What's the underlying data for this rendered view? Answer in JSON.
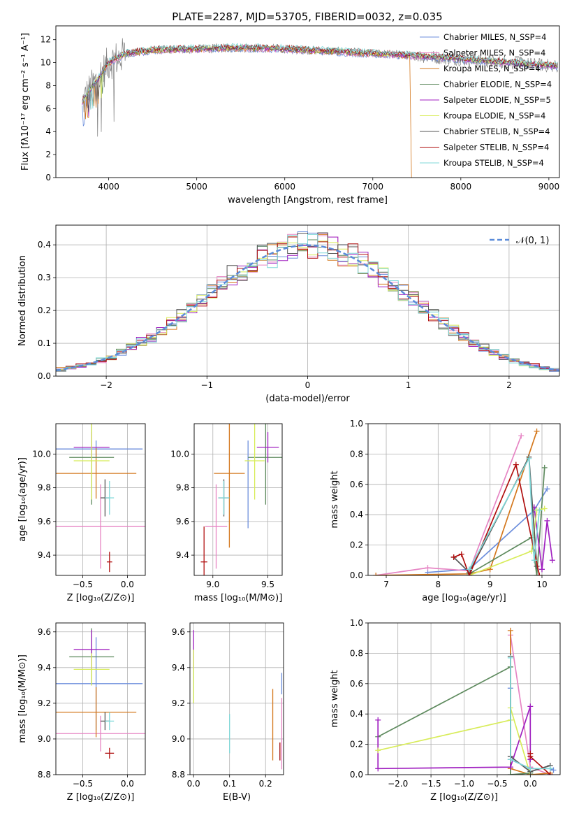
{
  "figure": {
    "title": "PLATE=2287, MJD=53705, FIBERID=0032, z=0.035"
  },
  "chart_data": [
    {
      "id": "spectrum",
      "type": "line",
      "xlabel": "wavelength [Angstrom, rest frame]",
      "ylabel": "Flux [fλ10⁻¹⁷ erg cm⁻² s⁻¹ A⁻¹]",
      "xlim": [
        3400,
        9120
      ],
      "ylim": [
        0,
        13.2
      ],
      "xticks": [
        4000,
        5000,
        6000,
        7000,
        8000,
        9000
      ],
      "yticks": [
        0,
        2,
        4,
        6,
        8,
        10,
        12
      ],
      "grid": false,
      "legend_position": "top-right",
      "series": [
        {
          "name": "Chabrier MILES, N_SSP=4",
          "color": "#6C8EDC"
        },
        {
          "name": "Salpeter MILES, N_SSP=4",
          "color": "#E685C4"
        },
        {
          "name": "Kroupa MILES, N_SSP=4",
          "color": "#D4781E"
        },
        {
          "name": "Chabrier ELODIE, N_SSP=4",
          "color": "#5E8A5E"
        },
        {
          "name": "Salpeter ELODIE, N_SSP=5",
          "color": "#A020C0"
        },
        {
          "name": "Kroupa ELODIE, N_SSP=4",
          "color": "#D8EC5A"
        },
        {
          "name": "Chabrier STELIB, N_SSP=4",
          "color": "#555555"
        },
        {
          "name": "Salpeter STELIB, N_SSP=4",
          "color": "#B01010"
        },
        {
          "name": "Kroupa STELIB, N_SSP=4",
          "color": "#7FD8D8"
        }
      ],
      "data_curve": {
        "color": "#808080"
      },
      "continuum": {
        "x": [
          3700,
          3800,
          3900,
          4000,
          4200,
          4500,
          5000,
          5500,
          6000,
          6500,
          7000,
          7500,
          8000,
          8500,
          9100
        ],
        "y": [
          6.5,
          7.8,
          8.8,
          10.0,
          10.8,
          11.1,
          11.2,
          11.3,
          11.2,
          11.0,
          10.8,
          10.6,
          10.3,
          10.0,
          9.7
        ]
      }
    },
    {
      "id": "residuals",
      "type": "histogram",
      "xlabel": "(data-model)/error",
      "ylabel": "Normed distribution",
      "xlim": [
        -2.5,
        2.5
      ],
      "ylim": [
        0,
        0.46
      ],
      "xticks": [
        -2,
        -1,
        0,
        1,
        2
      ],
      "yticks": [
        0.0,
        0.1,
        0.2,
        0.3,
        0.4
      ],
      "grid": true,
      "legend": "𝒩(0, 1)",
      "legend_position": "top-right",
      "bin_width": 0.1,
      "normal_curve": {
        "mean": 0,
        "sigma": 1,
        "color": "#5B8BD9"
      }
    },
    {
      "id": "age-vs-Z",
      "type": "errorbar",
      "xlabel": "Z [log₁₀(Z/Z⊙)]",
      "ylabel": "age  [log₁₀(age/yr)]",
      "xlim": [
        -0.8,
        0.2
      ],
      "ylim": [
        9.28,
        10.18
      ],
      "xticks": [
        -0.5,
        0.0
      ],
      "yticks": [
        9.4,
        9.6,
        9.8,
        10.0
      ],
      "grid": true,
      "points": [
        {
          "x": -0.35,
          "y": 10.03,
          "xerr": 0.52,
          "yerr": 0.05,
          "color": "#6C8EDC"
        },
        {
          "x": -0.3,
          "y": 9.57,
          "xerr": 0.5,
          "yerr": 0.25,
          "color": "#E685C4"
        },
        {
          "x": -0.35,
          "y": 9.885,
          "xerr": 0.45,
          "yerr": 0.15,
          "color": "#D4781E"
        },
        {
          "x": -0.4,
          "y": 9.98,
          "xerr": 0.25,
          "yerr": 0.28,
          "color": "#5E8A5E"
        },
        {
          "x": -0.4,
          "y": 10.04,
          "xerr": 0.2,
          "yerr": 0.09,
          "color": "#A020C0"
        },
        {
          "x": -0.4,
          "y": 9.96,
          "xerr": 0.2,
          "yerr": 0.23,
          "color": "#D8EC5A"
        },
        {
          "x": -0.25,
          "y": 9.74,
          "xerr": 0.05,
          "yerr": 0.11,
          "color": "#555555"
        },
        {
          "x": -0.2,
          "y": 9.36,
          "xerr": 0.03,
          "yerr": 0.06,
          "color": "#B01010"
        },
        {
          "x": -0.2,
          "y": 9.74,
          "xerr": 0.05,
          "yerr": 0.1,
          "color": "#7FD8D8"
        }
      ]
    },
    {
      "id": "age-vs-mass",
      "type": "errorbar",
      "xlabel": "mass [log₁₀(M/M⊙)]",
      "ylabel": "",
      "xlim": [
        8.83,
        9.63
      ],
      "ylim": [
        9.28,
        10.18
      ],
      "xticks": [
        9.0,
        9.5
      ],
      "yticks": [
        9.4,
        9.6,
        9.8,
        10.0
      ],
      "grid": true,
      "points": [
        {
          "x": 9.32,
          "y": 9.82,
          "xerr": 0.0,
          "yerr": 0.26,
          "color": "#6C8EDC"
        },
        {
          "x": 9.03,
          "y": 9.57,
          "xerr": 0.1,
          "yerr": 0.25,
          "color": "#E685C4"
        },
        {
          "x": 9.15,
          "y": 9.885,
          "xerr": 0.14,
          "yerr": 0.44,
          "color": "#D4781E"
        },
        {
          "x": 9.48,
          "y": 9.98,
          "xerr": 0.16,
          "yerr": 0.28,
          "color": "#5E8A5E"
        },
        {
          "x": 9.5,
          "y": 10.04,
          "xerr": 0.1,
          "yerr": 0.09,
          "color": "#A020C0"
        },
        {
          "x": 9.38,
          "y": 9.96,
          "xerr": 0.09,
          "yerr": 0.23,
          "color": "#D8EC5A"
        },
        {
          "x": 9.1,
          "y": 9.74,
          "xerr": 0.05,
          "yerr": 0.11,
          "color": "#555555"
        },
        {
          "x": 8.92,
          "y": 9.36,
          "xerr": 0.03,
          "yerr": 0.21,
          "color": "#B01010"
        },
        {
          "x": 9.1,
          "y": 9.74,
          "xerr": 0.05,
          "yerr": 0.1,
          "color": "#7FD8D8"
        }
      ]
    },
    {
      "id": "weight-vs-age",
      "type": "line",
      "xlabel": "age  [log₁₀(age/yr)]",
      "ylabel": "mass weight",
      "xlim": [
        6.65,
        10.35
      ],
      "ylim": [
        0,
        1.0
      ],
      "xticks": [
        7,
        8,
        9,
        10
      ],
      "yticks": [
        0.0,
        0.2,
        0.4,
        0.6,
        0.8,
        1.0
      ],
      "grid": true,
      "series": [
        {
          "color": "#6C8EDC",
          "x": [
            7.8,
            8.6,
            9.85,
            10.1
          ],
          "y": [
            0.02,
            0.04,
            0.43,
            0.57
          ]
        },
        {
          "color": "#E685C4",
          "x": [
            6.8,
            7.8,
            8.6,
            9.6
          ],
          "y": [
            0.0,
            0.05,
            0.03,
            0.92
          ]
        },
        {
          "color": "#D4781E",
          "x": [
            6.8,
            8.6,
            9.0,
            9.9
          ],
          "y": [
            0.0,
            0.01,
            0.04,
            0.95
          ]
        },
        {
          "color": "#5E8A5E",
          "x": [
            8.6,
            9.8,
            9.9,
            10.05
          ],
          "y": [
            0.01,
            0.25,
            0.0,
            0.71
          ]
        },
        {
          "color": "#A020C0",
          "x": [
            9.85,
            10.0,
            10.1,
            10.2
          ],
          "y": [
            0.45,
            0.04,
            0.36,
            0.1
          ]
        },
        {
          "color": "#D8EC5A",
          "x": [
            8.6,
            9.8,
            9.9,
            10.05
          ],
          "y": [
            0.0,
            0.16,
            0.43,
            0.44
          ]
        },
        {
          "color": "#555555",
          "x": [
            8.3,
            8.6,
            9.75,
            9.9
          ],
          "y": [
            0.12,
            0.02,
            0.78,
            0.06
          ]
        },
        {
          "color": "#B01010",
          "x": [
            8.3,
            8.45,
            8.6,
            9.5,
            9.95
          ],
          "y": [
            0.12,
            0.14,
            0.0,
            0.73,
            0.0
          ]
        },
        {
          "color": "#7FD8D8",
          "x": [
            8.6,
            9.75,
            9.85,
            9.95
          ],
          "y": [
            0.04,
            0.77,
            0.1,
            0.43
          ]
        }
      ]
    },
    {
      "id": "mass-vs-Z",
      "type": "errorbar",
      "xlabel": "Z [log₁₀(Z/Z⊙)]",
      "ylabel": "mass [log₁₀(M/M⊙)]",
      "xlim": [
        -0.8,
        0.2
      ],
      "ylim": [
        8.8,
        9.65
      ],
      "xticks": [
        -0.5,
        0.0
      ],
      "yticks": [
        8.8,
        9.0,
        9.2,
        9.4,
        9.6
      ],
      "grid": true,
      "points": [
        {
          "x": -0.35,
          "y": 9.31,
          "xerr": 0.52,
          "yerr": 0.26,
          "color": "#6C8EDC"
        },
        {
          "x": -0.3,
          "y": 9.03,
          "xerr": 0.5,
          "yerr": 0.1,
          "color": "#E685C4"
        },
        {
          "x": -0.35,
          "y": 9.15,
          "xerr": 0.45,
          "yerr": 0.14,
          "color": "#D4781E"
        },
        {
          "x": -0.4,
          "y": 9.46,
          "xerr": 0.25,
          "yerr": 0.16,
          "color": "#5E8A5E"
        },
        {
          "x": -0.4,
          "y": 9.5,
          "xerr": 0.2,
          "yerr": 0.11,
          "color": "#A020C0"
        },
        {
          "x": -0.4,
          "y": 9.39,
          "xerr": 0.2,
          "yerr": 0.09,
          "color": "#D8EC5A"
        },
        {
          "x": -0.25,
          "y": 9.1,
          "xerr": 0.05,
          "yerr": 0.05,
          "color": "#555555"
        },
        {
          "x": -0.2,
          "y": 8.92,
          "xerr": 0.05,
          "yerr": 0.03,
          "color": "#B01010"
        },
        {
          "x": -0.2,
          "y": 9.1,
          "xerr": 0.05,
          "yerr": 0.05,
          "color": "#7FD8D8"
        }
      ]
    },
    {
      "id": "mass-vs-ebv",
      "type": "errorbar",
      "xlabel": "E(B-V)",
      "ylabel": "",
      "xlim": [
        -0.01,
        0.25
      ],
      "ylim": [
        8.8,
        9.65
      ],
      "xticks": [
        0.0,
        0.1,
        0.2
      ],
      "yticks": [
        8.8,
        9.0,
        9.2,
        9.4,
        9.6
      ],
      "grid": true,
      "points": [
        {
          "x": 0.245,
          "y": 9.31,
          "xerr": 0,
          "yerr": 0.06,
          "color": "#6C8EDC"
        },
        {
          "x": 0.245,
          "y": 9.03,
          "xerr": 0,
          "yerr": 0.2,
          "color": "#E685C4"
        },
        {
          "x": 0.22,
          "y": 9.08,
          "xerr": 0,
          "yerr": 0.2,
          "color": "#D4781E"
        },
        {
          "x": 0.0,
          "y": 9.35,
          "xerr": 0,
          "yerr": 0.15,
          "color": "#5E8A5E"
        },
        {
          "x": 0.0,
          "y": 9.5,
          "xerr": 0,
          "yerr": 0.11,
          "color": "#A020C0"
        },
        {
          "x": 0.0,
          "y": 9.35,
          "xerr": 0,
          "yerr": 0.15,
          "color": "#D8EC5A"
        },
        {
          "x": 0.24,
          "y": 8.93,
          "xerr": 0,
          "yerr": 0.05,
          "color": "#555555"
        },
        {
          "x": 0.24,
          "y": 8.93,
          "xerr": 0,
          "yerr": 0.05,
          "color": "#B01010"
        },
        {
          "x": 0.1,
          "y": 9.03,
          "xerr": 0,
          "yerr": 0.11,
          "color": "#7FD8D8"
        }
      ]
    },
    {
      "id": "weight-vs-Z",
      "type": "line",
      "xlabel": "Z [log₁₀(Z/Z⊙)]",
      "ylabel": "mass weight",
      "xlim": [
        -2.45,
        0.45
      ],
      "ylim": [
        0,
        1.0
      ],
      "xticks": [
        -2.0,
        -1.5,
        -1.0,
        -0.5,
        0.0
      ],
      "yticks": [
        0.0,
        0.2,
        0.4,
        0.6,
        0.8,
        1.0
      ],
      "grid": true,
      "series": [
        {
          "color": "#6C8EDC",
          "x": [
            -0.3,
            -0.3,
            0.0,
            0.3,
            0.35
          ],
          "y": [
            0.57,
            0.1,
            0.04,
            0.04,
            0.03
          ]
        },
        {
          "color": "#E685C4",
          "x": [
            -0.3,
            0.0,
            0.3
          ],
          "y": [
            0.92,
            0.05,
            0.0
          ]
        },
        {
          "color": "#D4781E",
          "x": [
            -0.3,
            -0.3,
            0.0,
            0.3
          ],
          "y": [
            0.95,
            0.04,
            0.0,
            0.01
          ]
        },
        {
          "color": "#5E8A5E",
          "x": [
            -2.3,
            -0.3,
            -0.3,
            0.0
          ],
          "y": [
            0.25,
            0.71,
            0.0,
            0.01
          ]
        },
        {
          "color": "#A020C0",
          "x": [
            -2.3,
            -2.3,
            -0.3,
            0.0,
            0.0
          ],
          "y": [
            0.36,
            0.04,
            0.05,
            0.45,
            0.1
          ]
        },
        {
          "color": "#D8EC5A",
          "x": [
            -2.3,
            -0.3,
            -0.3,
            0.0
          ],
          "y": [
            0.16,
            0.36,
            0.44,
            0.0
          ]
        },
        {
          "color": "#555555",
          "x": [
            -0.3,
            -0.3,
            0.0,
            0.3
          ],
          "y": [
            0.78,
            0.12,
            0.02,
            0.06
          ]
        },
        {
          "color": "#B01010",
          "x": [
            0.0,
            0.0,
            0.3
          ],
          "y": [
            0.14,
            0.12,
            0.0
          ]
        },
        {
          "color": "#7FD8D8",
          "x": [
            -0.3,
            -0.3,
            0.0,
            0.3
          ],
          "y": [
            0.77,
            0.1,
            0.04,
            0.04
          ]
        }
      ]
    }
  ]
}
